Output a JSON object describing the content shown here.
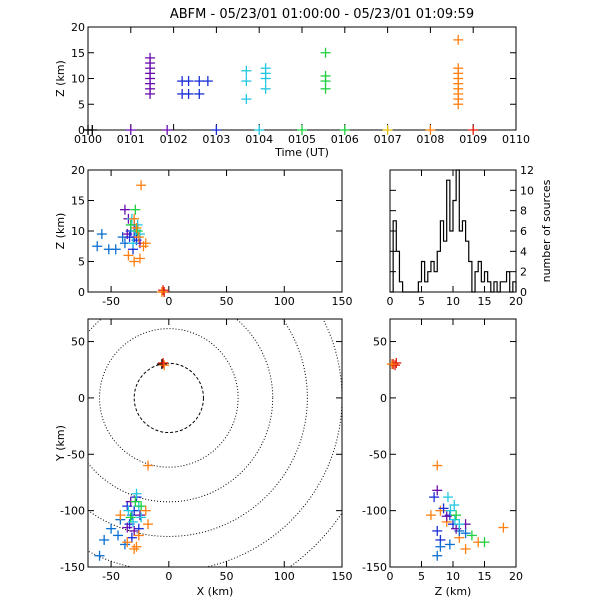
{
  "title": "ABFM - 05/23/01 01:00:00 - 05/23/01 01:09:59",
  "colors": [
    "#6a0dad",
    "#1a2fd6",
    "#0a6fd0",
    "#22c8e0",
    "#20d040",
    "#e8c010",
    "#ff8010",
    "#e02010",
    "#000000"
  ],
  "chart_data": [
    {
      "type": "scatter",
      "id": "time-z",
      "xlabel": "Time (UT)",
      "ylabel": "Z (km)",
      "xticks": [
        "0100",
        "0101",
        "0102",
        "0103",
        "0104",
        "0105",
        "0106",
        "0107",
        "0108",
        "0109",
        "0110"
      ],
      "xlim": [
        0,
        10
      ],
      "ylim": [
        0,
        20
      ],
      "yticks": [
        "0",
        "5",
        "10",
        "15",
        "20"
      ],
      "series": [
        {
          "color_index": 0,
          "points": [
            [
              1.45,
              7
            ],
            [
              1.45,
              8
            ],
            [
              1.45,
              9
            ],
            [
              1.45,
              10
            ],
            [
              1.45,
              11
            ],
            [
              1.45,
              12
            ],
            [
              1.45,
              13
            ],
            [
              1.45,
              14
            ]
          ]
        },
        {
          "color_index": 1,
          "points": [
            [
              2.2,
              7
            ],
            [
              2.2,
              9.5
            ],
            [
              2.35,
              7
            ],
            [
              2.35,
              9.5
            ],
            [
              2.6,
              7
            ],
            [
              2.6,
              9.5
            ],
            [
              2.8,
              9.5
            ]
          ]
        },
        {
          "color_index": 3,
          "points": [
            [
              3.7,
              6
            ],
            [
              3.7,
              9.5
            ],
            [
              3.7,
              11.5
            ],
            [
              4.15,
              8
            ],
            [
              4.15,
              10
            ],
            [
              4.15,
              11
            ],
            [
              4.15,
              12
            ]
          ]
        },
        {
          "color_index": 4,
          "points": [
            [
              5.55,
              8
            ],
            [
              5.55,
              9.5
            ],
            [
              5.55,
              10.5
            ],
            [
              5.55,
              15
            ]
          ]
        },
        {
          "color_index": 6,
          "points": [
            [
              8.65,
              5
            ],
            [
              8.65,
              6
            ],
            [
              8.65,
              7
            ],
            [
              8.65,
              8
            ],
            [
              8.65,
              9
            ],
            [
              8.65,
              10
            ],
            [
              8.65,
              11
            ],
            [
              8.65,
              12
            ],
            [
              8.65,
              17.5
            ]
          ]
        },
        {
          "color_index": 8,
          "points": [
            [
              0,
              0
            ],
            [
              0.1,
              0
            ]
          ]
        },
        {
          "color_index": 0,
          "points": [
            [
              1,
              0
            ],
            [
              1.85,
              0
            ]
          ]
        },
        {
          "color_index": 1,
          "points": [
            [
              3,
              0
            ]
          ]
        },
        {
          "color_index": 3,
          "points": [
            [
              4,
              0
            ]
          ]
        },
        {
          "color_index": 4,
          "points": [
            [
              5,
              0
            ],
            [
              6,
              0
            ]
          ]
        },
        {
          "color_index": 5,
          "points": [
            [
              7,
              0
            ]
          ]
        },
        {
          "color_index": 6,
          "points": [
            [
              8,
              0
            ]
          ]
        },
        {
          "color_index": 7,
          "points": [
            [
              9,
              0
            ]
          ]
        }
      ]
    },
    {
      "type": "scatter",
      "id": "x-z",
      "xlabel": "",
      "ylabel": "Z (km)",
      "xlim": [
        -70,
        150
      ],
      "ylim": [
        0,
        20
      ],
      "xticks": [
        "-50",
        "0",
        "50",
        "100",
        "150"
      ],
      "yticks": [
        "0",
        "5",
        "10",
        "15",
        "20"
      ],
      "series": [
        {
          "color_index": 2,
          "points": [
            [
              -58,
              9.5
            ],
            [
              -62,
              7.5
            ],
            [
              -52,
              7
            ],
            [
              -46,
              7
            ],
            [
              -40,
              9
            ],
            [
              -38,
              8
            ]
          ]
        },
        {
          "color_index": 0,
          "points": [
            [
              -38,
              13.5
            ],
            [
              -35,
              12
            ],
            [
              -30,
              11
            ],
            [
              -28,
              9
            ],
            [
              -25,
              8
            ],
            [
              -36,
              9.5
            ]
          ]
        },
        {
          "color_index": 1,
          "points": [
            [
              -33,
              10
            ],
            [
              -30,
              9
            ],
            [
              -28,
              8.5
            ],
            [
              -31,
              7
            ],
            [
              -34,
              9
            ]
          ]
        },
        {
          "color_index": 3,
          "points": [
            [
              -32,
              12
            ],
            [
              -29,
              10
            ],
            [
              -27,
              11
            ],
            [
              -25,
              9.5
            ],
            [
              -31,
              8
            ]
          ]
        },
        {
          "color_index": 4,
          "points": [
            [
              -29,
              13.5
            ],
            [
              -27,
              10
            ],
            [
              -33,
              11
            ]
          ]
        },
        {
          "color_index": 6,
          "points": [
            [
              -24,
              17.5
            ],
            [
              -30,
              12
            ],
            [
              -28,
              10.5
            ],
            [
              -26,
              9
            ],
            [
              -22,
              7.5
            ],
            [
              -35,
              6
            ],
            [
              -30,
              5
            ],
            [
              -25,
              5.5
            ],
            [
              -20,
              8
            ]
          ]
        },
        {
          "color_index": 7,
          "points": [
            [
              -5,
              0.3
            ],
            [
              -4,
              0
            ]
          ]
        },
        {
          "color_index": 6,
          "points": [
            [
              -6,
              0
            ]
          ]
        }
      ]
    },
    {
      "type": "bar",
      "id": "histogram",
      "xlabel": "",
      "ylabel": "number of sources",
      "xlim": [
        0,
        20
      ],
      "ylim": [
        0,
        12
      ],
      "xticks": [
        "0",
        "5",
        "10",
        "15",
        "20"
      ],
      "yticks": [
        "0",
        "2",
        "4",
        "6",
        "8",
        "10",
        "12"
      ],
      "bin_width": 0.5,
      "values": [
        0,
        7,
        4,
        1,
        0,
        0,
        0,
        0,
        0,
        1,
        3,
        1,
        2,
        3,
        2,
        4,
        7,
        5,
        11,
        6,
        9,
        12,
        6,
        7,
        5,
        3,
        0,
        2,
        3,
        1,
        2,
        1,
        0,
        1,
        0,
        1,
        1,
        2,
        0,
        1
      ]
    },
    {
      "type": "scatter",
      "id": "x-y",
      "xlabel": "X (km)",
      "ylabel": "Y (km)",
      "xlim": [
        -70,
        150
      ],
      "ylim": [
        -150,
        70
      ],
      "xticks": [
        "-50",
        "0",
        "50",
        "100",
        "150"
      ],
      "yticks": [
        "-150",
        "-100",
        "-50",
        "0",
        "50"
      ],
      "rings": [
        30,
        60,
        90,
        120,
        150,
        180
      ],
      "series": [
        {
          "color_index": 2,
          "points": [
            [
              -60,
              -140
            ],
            [
              -56,
              -126
            ],
            [
              -50,
              -116
            ],
            [
              -44,
              -122
            ],
            [
              -38,
              -130
            ],
            [
              -42,
              -108
            ],
            [
              -32,
              -104
            ]
          ]
        },
        {
          "color_index": 1,
          "points": [
            [
              -36,
              -96
            ],
            [
              -30,
              -100
            ],
            [
              -28,
              -88
            ],
            [
              -34,
              -112
            ],
            [
              -26,
              -116
            ],
            [
              -32,
              -124
            ]
          ]
        },
        {
          "color_index": 0,
          "points": [
            [
              -33,
              -92
            ],
            [
              -25,
              -104
            ],
            [
              -30,
              -118
            ],
            [
              -36,
              -115
            ]
          ]
        },
        {
          "color_index": 3,
          "points": [
            [
              -28,
              -85
            ],
            [
              -26,
              -96
            ],
            [
              -31,
              -110
            ],
            [
              -24,
              -106
            ],
            [
              -35,
              -100
            ]
          ]
        },
        {
          "color_index": 4,
          "points": [
            [
              -29,
              -92
            ],
            [
              -24,
              -96
            ],
            [
              -33,
              -106
            ]
          ]
        },
        {
          "color_index": 6,
          "points": [
            [
              -18,
              -60
            ],
            [
              -42,
              -104
            ],
            [
              -20,
              -100
            ],
            [
              -26,
              -122
            ],
            [
              -36,
              -128
            ],
            [
              -28,
              -132
            ],
            [
              -18,
              -112
            ],
            [
              -30,
              -134
            ]
          ]
        },
        {
          "color_index": 8,
          "points": [
            [
              -6,
              30
            ]
          ]
        },
        {
          "color_index": 6,
          "points": [
            [
              -4,
              29
            ]
          ]
        },
        {
          "color_index": 7,
          "points": [
            [
              -5,
              31
            ]
          ]
        }
      ]
    },
    {
      "type": "scatter",
      "id": "z-y",
      "xlabel": "Z (km)",
      "ylabel": "",
      "xlim": [
        0,
        20
      ],
      "ylim": [
        -150,
        70
      ],
      "xticks": [
        "0",
        "5",
        "10",
        "15",
        "20"
      ],
      "yticks": [
        "-150",
        "-100",
        "-50",
        "0",
        "50"
      ],
      "series": [
        {
          "color_index": 7,
          "points": [
            [
              0.5,
              30
            ],
            [
              0.8,
              29
            ],
            [
              1,
              31
            ]
          ]
        },
        {
          "color_index": 6,
          "points": [
            [
              0.3,
              30
            ]
          ]
        },
        {
          "color_index": 6,
          "points": [
            [
              7.5,
              -60
            ],
            [
              6.5,
              -104
            ],
            [
              8,
              -100
            ],
            [
              9,
              -110
            ],
            [
              11,
              -124
            ],
            [
              12,
              -134
            ],
            [
              14,
              -128
            ],
            [
              18,
              -115
            ]
          ]
        },
        {
          "color_index": 1,
          "points": [
            [
              7,
              -88
            ],
            [
              8.5,
              -98
            ],
            [
              10,
              -112
            ],
            [
              9.5,
              -104
            ],
            [
              7.5,
              -118
            ],
            [
              8,
              -126
            ]
          ]
        },
        {
          "color_index": 2,
          "points": [
            [
              7.5,
              -140
            ],
            [
              8,
              -132
            ],
            [
              9.5,
              -130
            ],
            [
              11,
              -118
            ],
            [
              12,
              -120
            ]
          ]
        },
        {
          "color_index": 0,
          "points": [
            [
              7.5,
              -82
            ],
            [
              9,
              -105
            ],
            [
              10.5,
              -116
            ],
            [
              12,
              -112
            ]
          ]
        },
        {
          "color_index": 3,
          "points": [
            [
              9.2,
              -88
            ],
            [
              9.6,
              -100
            ],
            [
              10.3,
              -108
            ],
            [
              11,
              -112
            ],
            [
              10.2,
              -95
            ]
          ]
        },
        {
          "color_index": 4,
          "points": [
            [
              13,
              -122
            ],
            [
              15,
              -128
            ],
            [
              10.5,
              -104
            ]
          ]
        }
      ]
    }
  ]
}
